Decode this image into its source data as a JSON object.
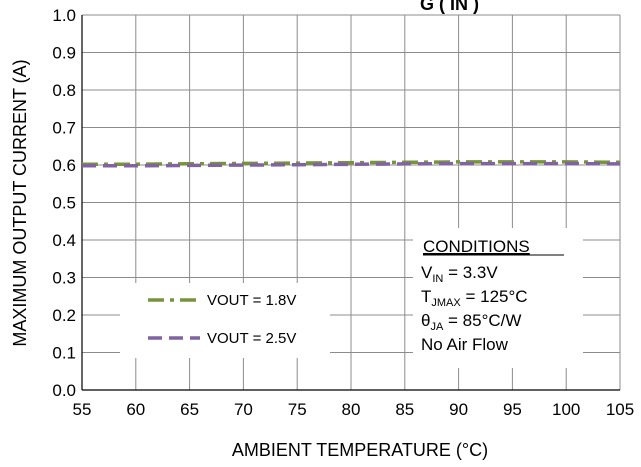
{
  "chart_data": {
    "type": "line",
    "title_partial": "G ( IN )",
    "xlabel": "AMBIENT TEMPERATURE (°C)",
    "ylabel": "MAXIMUM OUTPUT CURRENT (A)",
    "xlim": [
      55,
      105
    ],
    "ylim": [
      0.0,
      1.0
    ],
    "x_ticks": [
      "55",
      "60",
      "65",
      "70",
      "75",
      "80",
      "85",
      "90",
      "95",
      "100",
      "105"
    ],
    "y_ticks": [
      "0.0",
      "0.1",
      "0.2",
      "0.3",
      "0.4",
      "0.5",
      "0.6",
      "0.7",
      "0.8",
      "0.9",
      "1.0"
    ],
    "grid": true,
    "legend_position": "bottom-left",
    "series": [
      {
        "name": "VOUT = 1.8V",
        "color": "#77933c",
        "style": "dash-dot",
        "x": [
          55,
          60,
          65,
          70,
          75,
          80,
          85,
          90,
          95,
          100,
          105
        ],
        "y": [
          0.6,
          0.6,
          0.601,
          0.602,
          0.603,
          0.604,
          0.605,
          0.606,
          0.606,
          0.606,
          0.605
        ]
      },
      {
        "name": "VOUT = 2.5V",
        "color": "#8064a2",
        "style": "dashed",
        "x": [
          55,
          60,
          65,
          70,
          75,
          80,
          85,
          90,
          95,
          100,
          105
        ],
        "y": [
          0.6,
          0.6,
          0.601,
          0.602,
          0.603,
          0.604,
          0.605,
          0.606,
          0.606,
          0.606,
          0.605
        ]
      }
    ],
    "conditions": {
      "heading": "CONDITIONS",
      "lines": [
        {
          "main": "V",
          "sub": "IN",
          "rest": " = 3.3V"
        },
        {
          "main": "T",
          "sub": "JMAX",
          "rest": " = 125°C"
        },
        {
          "main": "θ",
          "sub": "JA",
          "rest": " = 85°C/W"
        },
        {
          "main": "No Air Flow",
          "sub": "",
          "rest": ""
        }
      ]
    }
  }
}
